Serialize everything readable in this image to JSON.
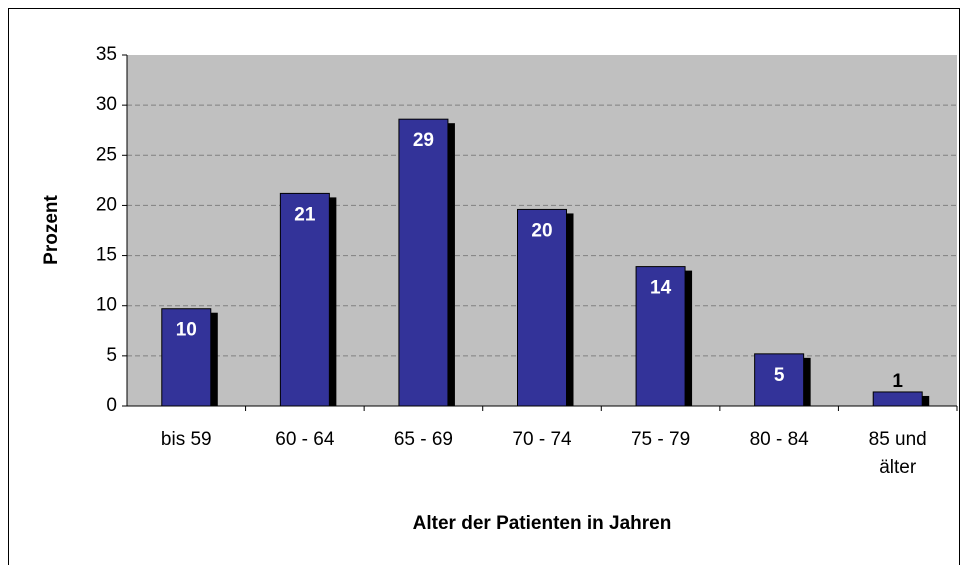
{
  "chart_data": {
    "type": "bar",
    "x_label": "Alter der Patienten in Jahren",
    "y_label": "Prozent",
    "categories": [
      "bis 59",
      "60 - 64",
      "65 - 69",
      "70 - 74",
      "75 - 79",
      "80 - 84",
      "85 und älter"
    ],
    "values": [
      9.7,
      21.2,
      28.6,
      19.6,
      13.9,
      5.2,
      1.4
    ],
    "value_labels": [
      "10",
      "21",
      "29",
      "20",
      "14",
      "5",
      "1"
    ],
    "color": "#333399",
    "ylim": [
      0,
      35
    ],
    "yticks": [
      0,
      5,
      10,
      15,
      20,
      25,
      30,
      35
    ],
    "grid": true
  }
}
